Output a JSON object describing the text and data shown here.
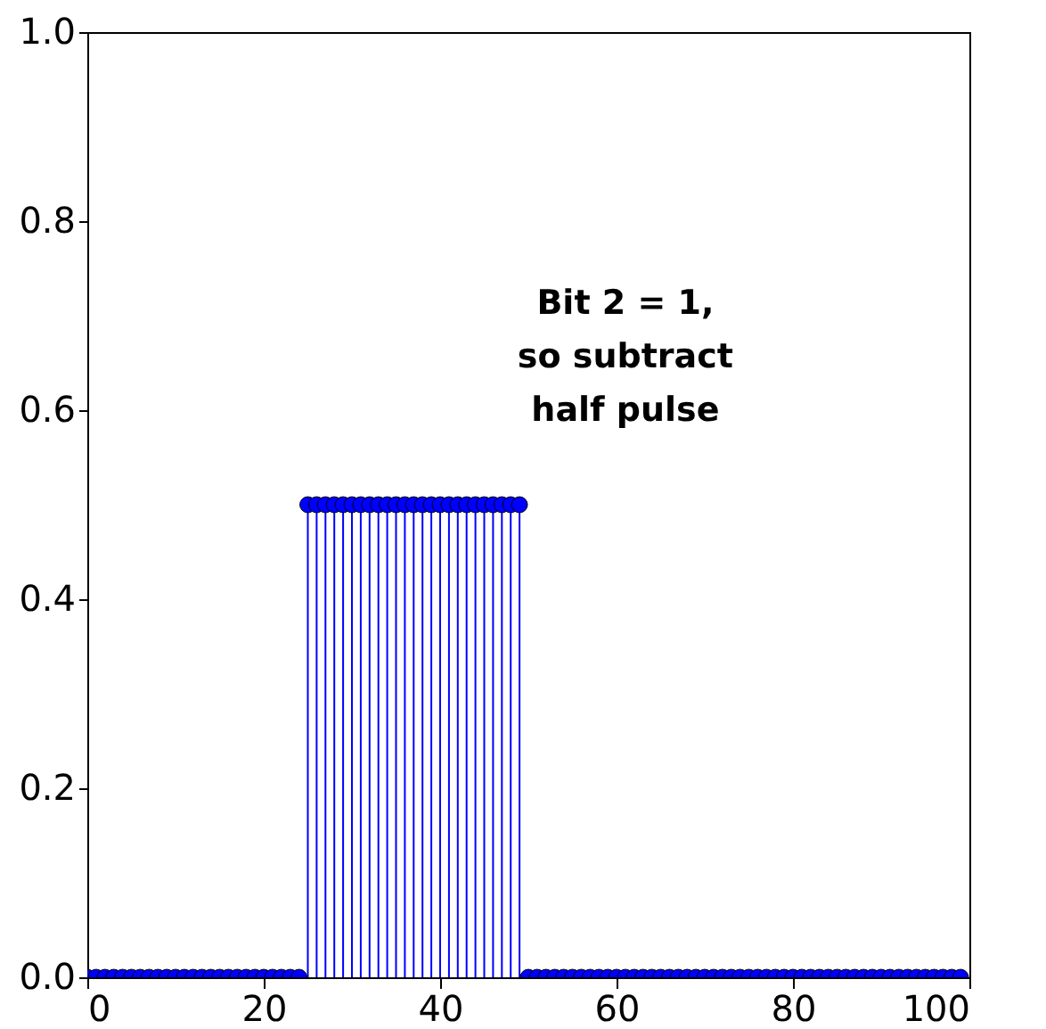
{
  "chart_data": {
    "type": "lollipop",
    "x": [
      0,
      1,
      2,
      3,
      4,
      5,
      6,
      7,
      8,
      9,
      10,
      11,
      12,
      13,
      14,
      15,
      16,
      17,
      18,
      19,
      20,
      21,
      22,
      23,
      24,
      25,
      26,
      27,
      28,
      29,
      30,
      31,
      32,
      33,
      34,
      35,
      36,
      37,
      38,
      39,
      40,
      41,
      42,
      43,
      44,
      45,
      46,
      47,
      48,
      49,
      50,
      51,
      52,
      53,
      54,
      55,
      56,
      57,
      58,
      59,
      60,
      61,
      62,
      63,
      64,
      65,
      66,
      67,
      68,
      69,
      70,
      71,
      72,
      73,
      74,
      75,
      76,
      77,
      78,
      79,
      80,
      81,
      82,
      83,
      84,
      85,
      86,
      87,
      88,
      89,
      90,
      91,
      92,
      93,
      94,
      95,
      96,
      97,
      98,
      99
    ],
    "values": [
      0,
      0,
      0,
      0,
      0,
      0,
      0,
      0,
      0,
      0,
      0,
      0,
      0,
      0,
      0,
      0,
      0,
      0,
      0,
      0,
      0,
      0,
      0,
      0,
      0,
      0.5,
      0.5,
      0.5,
      0.5,
      0.5,
      0.5,
      0.5,
      0.5,
      0.5,
      0.5,
      0.5,
      0.5,
      0.5,
      0.5,
      0.5,
      0.5,
      0.5,
      0.5,
      0.5,
      0.5,
      0.5,
      0.5,
      0.5,
      0.5,
      0.5,
      0,
      0,
      0,
      0,
      0,
      0,
      0,
      0,
      0,
      0,
      0,
      0,
      0,
      0,
      0,
      0,
      0,
      0,
      0,
      0,
      0,
      0,
      0,
      0,
      0,
      0,
      0,
      0,
      0,
      0,
      0,
      0,
      0,
      0,
      0,
      0,
      0,
      0,
      0,
      0,
      0,
      0,
      0,
      0,
      0,
      0,
      0,
      0,
      0,
      0
    ],
    "color": "#0000ff",
    "marker": "circle",
    "xlim": [
      0,
      100
    ],
    "xticks": [
      0,
      20,
      40,
      60,
      80,
      100
    ],
    "ylim": [
      0,
      1.0
    ],
    "yticks": [
      {
        "value": 0,
        "label": "0.0"
      },
      {
        "value": 0.2,
        "label": "0.2"
      },
      {
        "value": 0.4,
        "label": "0.4"
      },
      {
        "value": 0.6,
        "label": "0.6"
      },
      {
        "value": 0.8,
        "label": "0.8"
      },
      {
        "value": 1.0,
        "label": "1.0"
      }
    ],
    "annotations": [
      "Bit 2 = 1,\nso subtract\nhalf pulse"
    ]
  }
}
